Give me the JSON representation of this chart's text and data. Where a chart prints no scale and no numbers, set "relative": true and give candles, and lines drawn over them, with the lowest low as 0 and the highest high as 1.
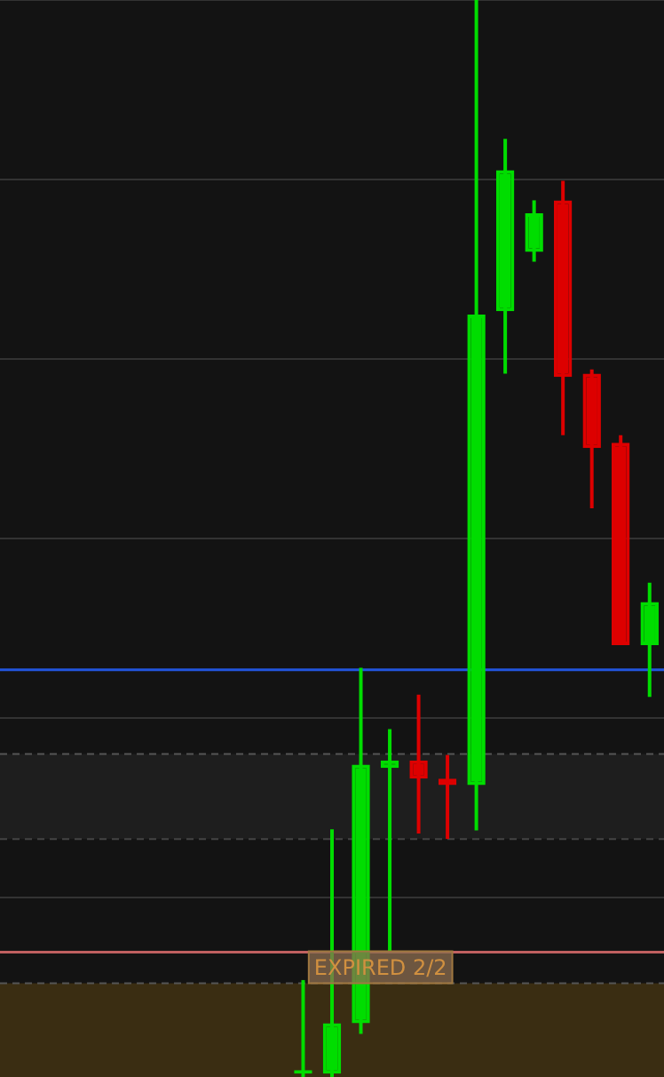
{
  "chart_data": {
    "type": "candlestick",
    "relative": true,
    "categories": [
      null,
      null,
      null,
      null,
      null,
      null,
      null,
      null,
      null,
      null,
      null,
      null,
      null,
      null,
      null,
      null,
      null,
      null,
      null,
      null,
      null,
      null,
      null
    ],
    "ohlc": [
      null,
      null,
      null,
      null,
      null,
      null,
      null,
      null,
      null,
      null,
      [
        0.003,
        0.09,
        0,
        0.003
      ],
      [
        0.003,
        0.23,
        0,
        0.05
      ],
      [
        0.05,
        0.38,
        0.04,
        0.29
      ],
      [
        0.287,
        0.323,
        0.117,
        0.294
      ],
      [
        0.294,
        0.355,
        0.226,
        0.277
      ],
      [
        0.277,
        0.299,
        0.221,
        0.271
      ],
      [
        0.271,
        1,
        0.229,
        0.708
      ],
      [
        0.711,
        0.871,
        0.653,
        0.842
      ],
      [
        0.766,
        0.814,
        0.757,
        0.802
      ],
      [
        0.814,
        0.832,
        0.596,
        0.65
      ],
      [
        0.653,
        0.657,
        0.528,
        0.584
      ],
      [
        0.589,
        0.596,
        0.401,
        0.401
      ],
      [
        0.401,
        0.459,
        0.353,
        0.441
      ]
    ],
    "colors": [
      null,
      null,
      null,
      null,
      null,
      null,
      null,
      null,
      null,
      null,
      "#00dd00",
      "#00dd00",
      "#00dd00",
      "#00dd00",
      "#dd0000",
      "#dd0000",
      "#00dd00",
      "#00dd00",
      "#00dd00",
      "#dd0000",
      "#dd0000",
      "#dd0000",
      "#00dd00"
    ],
    "ref_lines": [
      {
        "axis": "y",
        "value": 0.378,
        "color": "#2255dd"
      },
      {
        "axis": "y",
        "value": 0.116,
        "color": "#c06060"
      },
      {
        "axis": "y",
        "value": 0.087,
        "color": "#555555",
        "line_style": "dashed"
      },
      {
        "axis": "y",
        "value": 0.3,
        "color": "#555555",
        "line_style": "dashed"
      },
      {
        "axis": "y",
        "value": 0.221,
        "color": "#444444",
        "line_style": "dashed"
      }
    ],
    "bands": [
      {
        "axis": "y",
        "from": 0,
        "to": 0.087,
        "label": "EXPIRED 2/2",
        "color": "#3a2d12"
      },
      {
        "axis": "y",
        "from": 0.221,
        "to": 0.3,
        "color": "#1e1e1e"
      }
    ],
    "grid": "y"
  }
}
